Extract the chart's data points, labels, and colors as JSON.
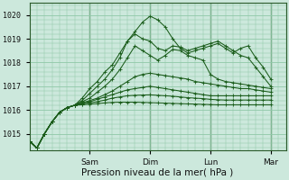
{
  "xlabel": "Pression niveau de la mer( hPa )",
  "background_color": "#cce8dc",
  "grid_color": "#90c8a8",
  "line_color": "#1a5c1a",
  "ylim": [
    1014.3,
    1020.5
  ],
  "xlim": [
    -6,
    96
  ],
  "day_ticks": [
    18,
    42,
    66,
    90
  ],
  "day_labels": [
    "Sam",
    "Dim",
    "Lun",
    "Mar"
  ],
  "yticks": [
    1015,
    1016,
    1017,
    1018,
    1019,
    1020
  ],
  "series": [
    [
      1014.7,
      1014.4,
      1015.0,
      1015.5,
      1015.9,
      1016.1,
      1016.2,
      1016.5,
      1016.9,
      1017.2,
      1017.6,
      1017.9,
      1018.4,
      1018.9,
      1019.3,
      1019.7,
      1019.95,
      1019.8,
      1019.5,
      1019.0,
      1018.6,
      1018.4,
      1018.5,
      1018.6,
      1018.7,
      1018.8,
      1018.6,
      1018.4,
      1018.6,
      1018.7,
      1018.2,
      1017.8,
      1017.3
    ],
    [
      1014.7,
      1014.4,
      1015.0,
      1015.5,
      1015.9,
      1016.1,
      1016.2,
      1016.4,
      1016.7,
      1017.0,
      1017.3,
      1017.7,
      1018.2,
      1018.9,
      1019.2,
      1019.0,
      1018.9,
      1018.6,
      1018.5,
      1018.7,
      1018.65,
      1018.5,
      1018.6,
      1018.7,
      1018.8,
      1018.9,
      1018.7,
      1018.5,
      1018.3,
      1018.2,
      1017.8,
      1017.4,
      1017.0
    ],
    [
      1014.7,
      1014.4,
      1015.0,
      1015.5,
      1015.9,
      1016.1,
      1016.2,
      1016.35,
      1016.5,
      1016.75,
      1017.0,
      1017.3,
      1017.7,
      1018.2,
      1018.7,
      1018.5,
      1018.3,
      1018.1,
      1018.3,
      1018.55,
      1018.5,
      1018.3,
      1018.2,
      1018.1,
      1017.5,
      1017.3,
      1017.2,
      1017.15,
      1017.1,
      1017.05,
      1017.0,
      1016.95,
      1016.9
    ],
    [
      1014.7,
      1014.4,
      1015.0,
      1015.5,
      1015.9,
      1016.1,
      1016.2,
      1016.3,
      1016.4,
      1016.5,
      1016.65,
      1016.8,
      1017.0,
      1017.2,
      1017.4,
      1017.5,
      1017.55,
      1017.5,
      1017.45,
      1017.4,
      1017.35,
      1017.3,
      1017.2,
      1017.15,
      1017.1,
      1017.05,
      1017.0,
      1016.95,
      1016.9,
      1016.9,
      1016.85,
      1016.8,
      1016.75
    ],
    [
      1014.7,
      1014.4,
      1015.0,
      1015.5,
      1015.9,
      1016.1,
      1016.2,
      1016.28,
      1016.35,
      1016.45,
      1016.55,
      1016.65,
      1016.75,
      1016.85,
      1016.9,
      1016.95,
      1017.0,
      1016.95,
      1016.9,
      1016.85,
      1016.8,
      1016.75,
      1016.7,
      1016.65,
      1016.6,
      1016.6,
      1016.6,
      1016.6,
      1016.6,
      1016.6,
      1016.6,
      1016.6,
      1016.6
    ],
    [
      1014.7,
      1014.4,
      1015.0,
      1015.5,
      1015.9,
      1016.1,
      1016.2,
      1016.25,
      1016.3,
      1016.35,
      1016.42,
      1016.5,
      1016.55,
      1016.6,
      1016.62,
      1016.63,
      1016.64,
      1016.62,
      1016.6,
      1016.58,
      1016.55,
      1016.52,
      1016.5,
      1016.48,
      1016.45,
      1016.43,
      1016.42,
      1016.42,
      1016.42,
      1016.42,
      1016.42,
      1016.42,
      1016.42
    ],
    [
      1014.7,
      1014.4,
      1015.0,
      1015.5,
      1015.9,
      1016.1,
      1016.2,
      1016.22,
      1016.25,
      1016.27,
      1016.3,
      1016.32,
      1016.33,
      1016.33,
      1016.33,
      1016.32,
      1016.31,
      1016.3,
      1016.29,
      1016.28,
      1016.27,
      1016.26,
      1016.25,
      1016.24,
      1016.23,
      1016.22,
      1016.22,
      1016.22,
      1016.22,
      1016.22,
      1016.22,
      1016.22,
      1016.22
    ]
  ]
}
